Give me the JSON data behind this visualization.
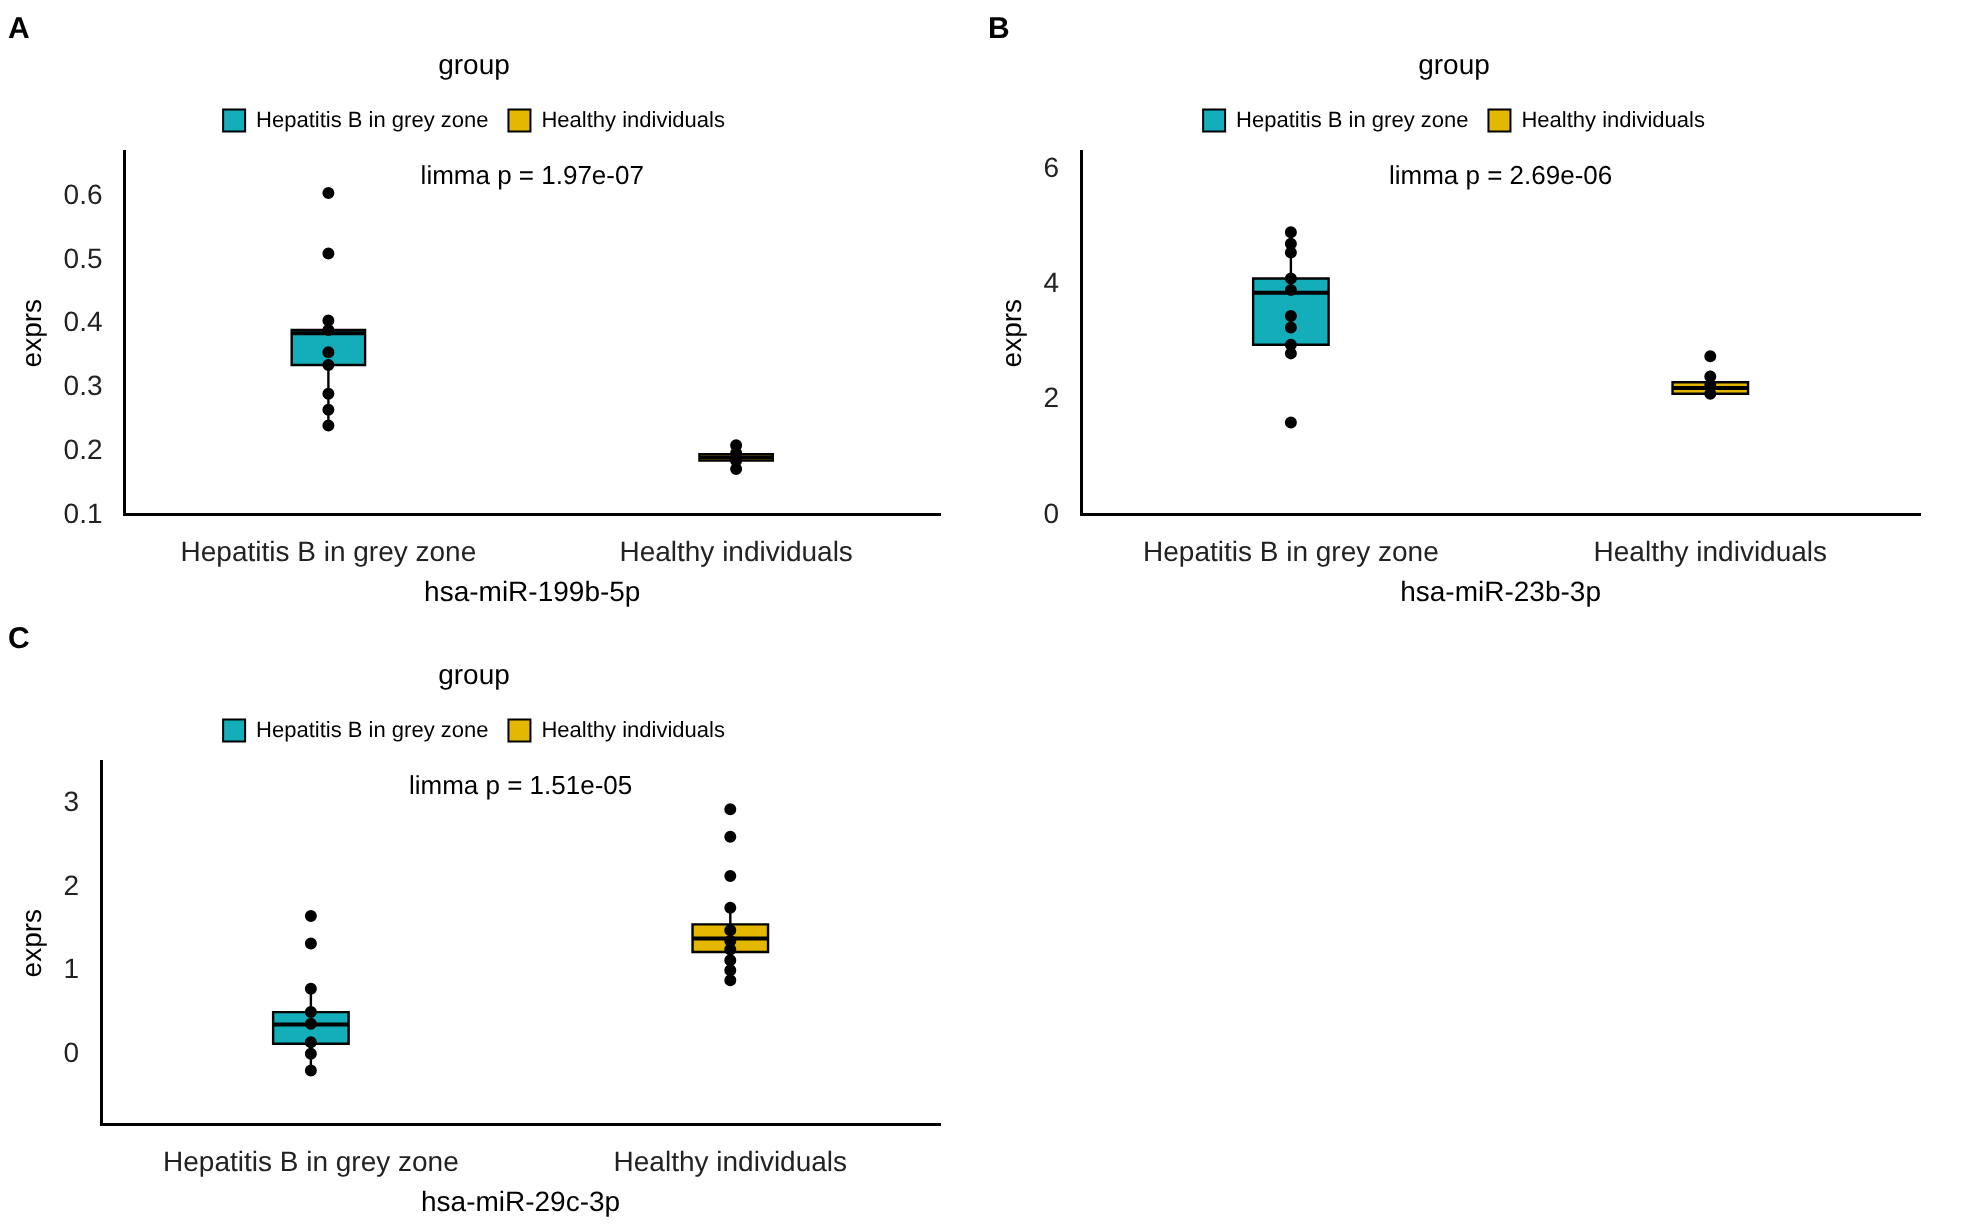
{
  "chart_data": [
    {
      "type": "box",
      "title": "A",
      "xlabel": "hsa-miR-199b-5p",
      "ylabel": "exprs",
      "legend_title": "group",
      "legend": "top",
      "annotations": [
        "limma p = 1.97e-07"
      ],
      "categories": [
        "Hepatitis B in grey zone",
        "Healthy individuals"
      ],
      "ylim": [
        0.1,
        0.67
      ],
      "yticks": [
        0.1,
        0.2,
        0.3,
        0.4,
        0.5,
        0.6
      ],
      "series": [
        {
          "name": "Hepatitis B in grey zone",
          "color": "#14aeba",
          "boxes": [
            {
              "low": 0.24,
              "q1": 0.335,
              "median": 0.385,
              "q3": 0.39,
              "high": 0.405
            },
            null
          ]
        },
        {
          "name": "Healthy individuals",
          "color": "#e4b800",
          "boxes": [
            null,
            {
              "low": 0.17,
              "q1": 0.185,
              "median": 0.19,
              "q3": 0.195,
              "high": 0.21
            }
          ]
        },
        {
          "type": "scatter",
          "color": "#000000",
          "x": [
            "Hepatitis B in grey zone",
            "Hepatitis B in grey zone",
            "Hepatitis B in grey zone",
            "Hepatitis B in grey zone",
            "Hepatitis B in grey zone",
            "Hepatitis B in grey zone",
            "Hepatitis B in grey zone",
            "Hepatitis B in grey zone",
            "Hepatitis B in grey zone",
            "Healthy individuals",
            "Healthy individuals",
            "Healthy individuals",
            "Healthy individuals"
          ],
          "values": [
            0.605,
            0.51,
            0.405,
            0.39,
            0.355,
            0.335,
            0.29,
            0.265,
            0.24,
            0.172,
            0.185,
            0.197,
            0.209
          ]
        }
      ]
    },
    {
      "type": "box",
      "title": "B",
      "xlabel": "hsa-miR-23b-3p",
      "ylabel": "exprs",
      "legend_title": "group",
      "legend": "top",
      "annotations": [
        "limma p = 2.69e-06"
      ],
      "categories": [
        "Hepatitis B in grey zone",
        "Healthy individuals"
      ],
      "ylim": [
        0,
        6.3
      ],
      "yticks": [
        0,
        2,
        4,
        6
      ],
      "series": [
        {
          "name": "Hepatitis B in grey zone",
          "color": "#14aeba",
          "boxes": [
            {
              "low": 2.8,
              "q1": 2.95,
              "median": 3.85,
              "q3": 4.1,
              "high": 4.9
            },
            null
          ]
        },
        {
          "name": "Healthy individuals",
          "color": "#e4b800",
          "boxes": [
            null,
            {
              "low": 2.05,
              "q1": 2.1,
              "median": 2.2,
              "q3": 2.3,
              "high": 2.5
            }
          ]
        },
        {
          "type": "scatter",
          "color": "#000000",
          "x": [
            "Hepatitis B in grey zone",
            "Hepatitis B in grey zone",
            "Hepatitis B in grey zone",
            "Hepatitis B in grey zone",
            "Hepatitis B in grey zone",
            "Hepatitis B in grey zone",
            "Hepatitis B in grey zone",
            "Hepatitis B in grey zone",
            "Hepatitis B in grey zone",
            "Hepatitis B in grey zone",
            "Healthy individuals",
            "Healthy individuals",
            "Healthy individuals",
            "Healthy individuals"
          ],
          "values": [
            4.9,
            4.7,
            4.55,
            4.1,
            3.9,
            3.45,
            3.25,
            2.95,
            2.8,
            1.6,
            2.75,
            2.4,
            2.25,
            2.1
          ]
        }
      ]
    },
    {
      "type": "box",
      "title": "C",
      "xlabel": "hsa-miR-29c-3p",
      "ylabel": "exprs",
      "legend_title": "group",
      "legend": "top",
      "annotations": [
        "limma p = 1.51e-05"
      ],
      "categories": [
        "Hepatitis B in grey zone",
        "Healthy individuals"
      ],
      "ylim": [
        -0.85,
        3.5
      ],
      "yticks": [
        0,
        1,
        2,
        3
      ],
      "series": [
        {
          "name": "Hepatitis B in grey zone",
          "color": "#14aeba",
          "boxes": [
            {
              "low": -0.2,
              "q1": 0.12,
              "median": 0.35,
              "q3": 0.5,
              "high": 0.8
            },
            null
          ]
        },
        {
          "name": "Healthy individuals",
          "color": "#e4b800",
          "boxes": [
            null,
            {
              "low": 0.85,
              "q1": 1.22,
              "median": 1.38,
              "q3": 1.55,
              "high": 1.75
            }
          ]
        },
        {
          "type": "scatter",
          "color": "#000000",
          "x": [
            "Hepatitis B in grey zone",
            "Hepatitis B in grey zone",
            "Hepatitis B in grey zone",
            "Hepatitis B in grey zone",
            "Hepatitis B in grey zone",
            "Hepatitis B in grey zone",
            "Hepatitis B in grey zone",
            "Hepatitis B in grey zone",
            "Healthy individuals",
            "Healthy individuals",
            "Healthy individuals",
            "Healthy individuals",
            "Healthy individuals",
            "Healthy individuals",
            "Healthy individuals",
            "Healthy individuals",
            "Healthy individuals",
            "Healthy individuals"
          ],
          "values": [
            1.65,
            1.32,
            0.78,
            0.5,
            0.36,
            0.14,
            0,
            -0.2,
            2.93,
            2.6,
            2.13,
            1.75,
            1.48,
            1.35,
            1.25,
            1.12,
            1,
            0.88
          ]
        }
      ]
    }
  ]
}
